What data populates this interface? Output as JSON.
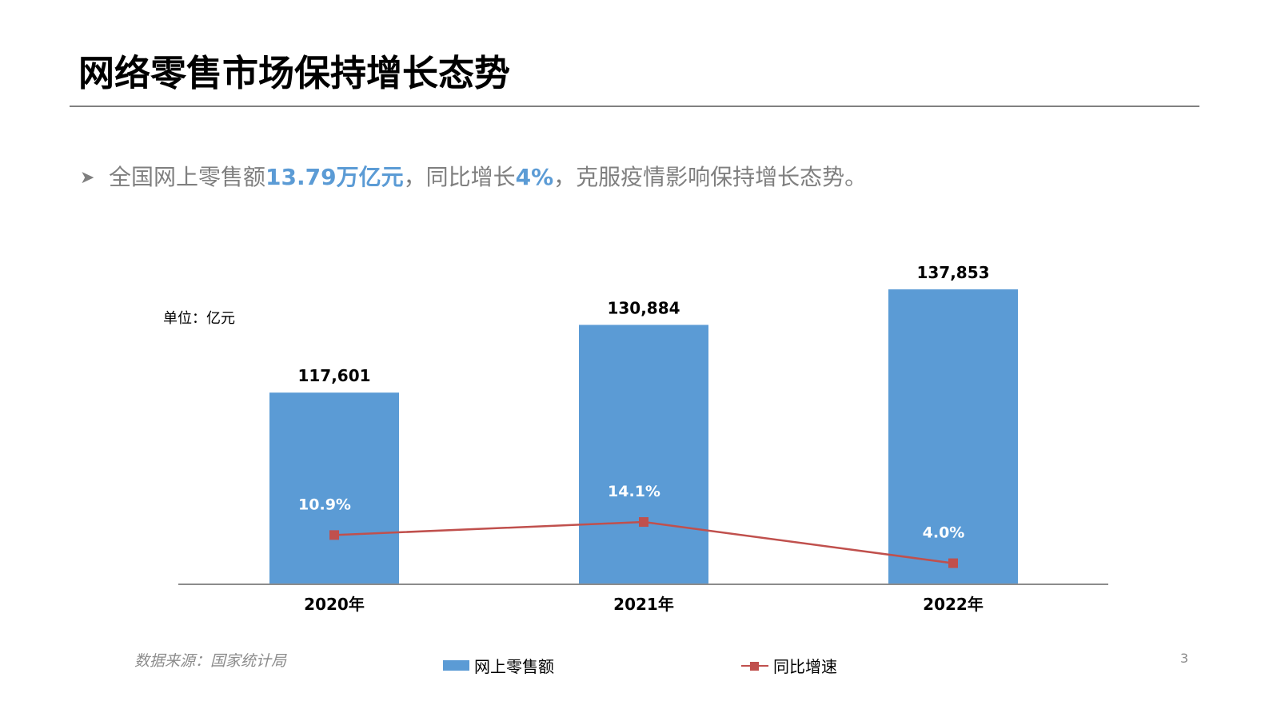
{
  "slide": {
    "title": "网络零售市场保持增长态势",
    "bullet": {
      "icon": "arrow-bullet-icon",
      "parts": [
        {
          "text": "全国网上零售额",
          "highlight": false
        },
        {
          "text": "13.79万亿元",
          "highlight": true
        },
        {
          "text": "，同比增长",
          "highlight": false
        },
        {
          "text": "4%",
          "highlight": true
        },
        {
          "text": "，克服疫情影响保持增长态势。",
          "highlight": false
        }
      ]
    },
    "unit_label": "单位：亿元",
    "source": "数据来源：国家统计局",
    "page_number": "3",
    "colors": {
      "bar": "#5b9bd5",
      "line": "#c0504d",
      "highlight_text": "#5b9bd5",
      "body_text": "#7f7f7f",
      "rule": "#808080"
    }
  },
  "legend": {
    "bar_label": "网上零售额",
    "line_label": "同比增速"
  },
  "chart_data": {
    "type": "bar",
    "combo": "bar+line",
    "title": "",
    "xlabel": "",
    "ylabel": "单位：亿元",
    "categories": [
      "2020年",
      "2021年",
      "2022年"
    ],
    "series": [
      {
        "name": "网上零售额",
        "type": "bar",
        "axis": "primary",
        "values": [
          117601,
          130884,
          137853
        ],
        "labels": [
          "117,601",
          "130,884",
          "137,853"
        ],
        "color": "#5b9bd5"
      },
      {
        "name": "同比增速",
        "type": "line",
        "axis": "secondary",
        "values": [
          10.9,
          14.1,
          4.0
        ],
        "labels": [
          "10.9%",
          "14.1%",
          "4.0%"
        ],
        "color": "#c0504d",
        "marker": "square"
      }
    ],
    "ylim": [
      80000,
      140000
    ],
    "y2lim": [
      0,
      60
    ],
    "grid": false,
    "axis_ticks_visible": false,
    "legend_position": "bottom"
  }
}
